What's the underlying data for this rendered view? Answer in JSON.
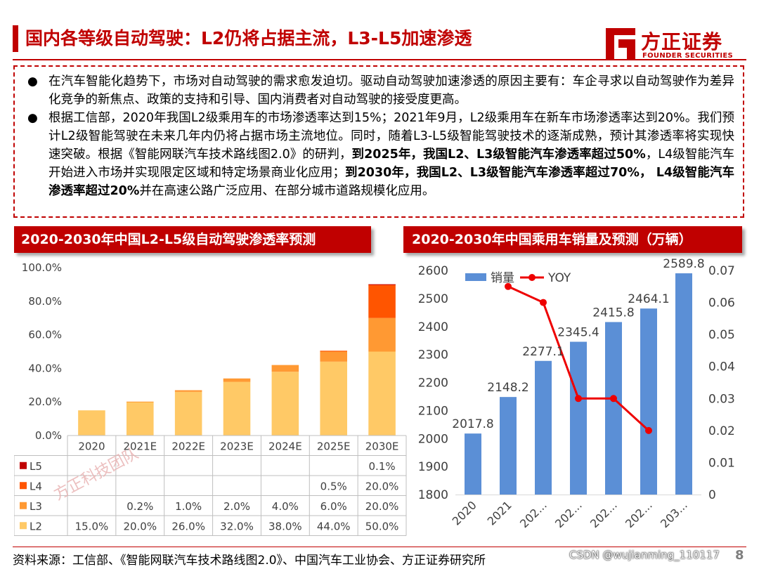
{
  "header": {
    "title": "国内各等级自动驾驶：L2仍将占据主流，L3-L5加速渗透",
    "logo_cn": "方正证券",
    "logo_en": "FOUNDER SECURITIES",
    "brand_color": "#c00000"
  },
  "bullets": [
    {
      "segments": [
        {
          "text": "在汽车智能化趋势下，市场对自动驾驶的需求愈发迫切。驱动自动驾驶加速渗透的原因主要有：车企寻求以自动驾驶作为差异化竞争的新焦点、政策的支持和引导、国内消费者对自动驾驶的接受度更高。",
          "bold": false
        }
      ]
    },
    {
      "segments": [
        {
          "text": "根据工信部，2020年我国L2级乘用车的市场渗透率达到15%；2021年9月，L2级乘用车在新车市场渗透率达到20%。我们预计L2级智能驾驶在未来几年内仍将占据市场主流地位。同时，随着L3-L5级智能驾驶技术的逐渐成熟，预计其渗透率将实现快速突破。根据《智能网联汽车技术路线图2.0》的研判，",
          "bold": false
        },
        {
          "text": "到2025年，我国L2、L3级智能汽车渗透率超过50%",
          "bold": true
        },
        {
          "text": "，L4级智能汽车开始进入市场并实现限定区域和特定场景商业化应用；",
          "bold": false
        },
        {
          "text": "到2030年，我国L2、L3级智能汽车渗透率超过70%， L4级智能汽车渗透率超过20%",
          "bold": true
        },
        {
          "text": "并在高速公路广泛应用、在部分城市道路规模化应用。",
          "bold": false
        }
      ]
    }
  ],
  "left_section": {
    "title": "2020-2030年中国L2-L5级自动驾驶渗透率预测"
  },
  "right_section": {
    "title": "2020-2030年中国乘用车销量及预测（万辆）"
  },
  "chart_data": [
    {
      "type": "bar",
      "stacked": true,
      "categories": [
        "2020",
        "2021E",
        "2022E",
        "2023E",
        "2024E",
        "2025E",
        "2030E"
      ],
      "ylim": [
        0,
        100
      ],
      "yticks": [
        "0.0%",
        "20.0%",
        "40.0%",
        "60.0%",
        "80.0%",
        "100.0%"
      ],
      "series": [
        {
          "name": "L2",
          "values": [
            15.0,
            20.0,
            26.0,
            32.0,
            38.0,
            44.0,
            50.0
          ],
          "labels": [
            "15.0%",
            "20.0%",
            "26.0%",
            "32.0%",
            "38.0%",
            "44.0%",
            "50.0%"
          ],
          "color": "#ffc966"
        },
        {
          "name": "L3",
          "values": [
            0,
            0.2,
            1.0,
            2.0,
            4.0,
            6.0,
            20.0
          ],
          "labels": [
            "",
            "0.2%",
            "1.0%",
            "2.0%",
            "4.0%",
            "6.0%",
            "20.0%"
          ],
          "color": "#ff9933"
        },
        {
          "name": "L4",
          "values": [
            0,
            0,
            0,
            0,
            0,
            0.5,
            20.0
          ],
          "labels": [
            "",
            "",
            "",
            "",
            "",
            "0.5%",
            "20.0%"
          ],
          "color": "#ff5500"
        },
        {
          "name": "L5",
          "values": [
            0,
            0,
            0,
            0,
            0,
            0,
            0.1
          ],
          "labels": [
            "",
            "",
            "",
            "",
            "",
            "",
            "0.1%"
          ],
          "color": "#c00000"
        }
      ],
      "legend": "table-below",
      "watermark": "方正科技团队"
    },
    {
      "type": "bar+line",
      "categories": [
        "2020",
        "2021",
        "202...",
        "202...",
        "202...",
        "202...",
        "203..."
      ],
      "bar_series": {
        "name": "销量",
        "values": [
          2017.8,
          2148.2,
          2277.1,
          2345.4,
          2415.8,
          2464.1,
          2589.8
        ],
        "labels": [
          "2017.8",
          "2148.2",
          "2277.1",
          "2345.4",
          "2415.8",
          "2464.1",
          "2589.8"
        ],
        "color": "#5b8fd6"
      },
      "line_series": {
        "name": "YOY",
        "values": [
          null,
          0.065,
          0.06,
          0.03,
          0.03,
          0.02,
          null
        ],
        "color": "#ee0000"
      },
      "ylim_left": [
        1800,
        2600
      ],
      "yticks_left": [
        "1800",
        "1900",
        "2000",
        "2100",
        "2200",
        "2300",
        "2400",
        "2500",
        "2600"
      ],
      "ylim_right": [
        0,
        0.07
      ],
      "yticks_right": [
        "0",
        "0.01",
        "0.02",
        "0.03",
        "0.04",
        "0.05",
        "0.06",
        "0.07"
      ],
      "legend": "top-left"
    }
  ],
  "footer": {
    "source": "资料来源：工信部、《智能网联汽车技术路线图2.0》、中国汽车工业协会、方正证券研究所",
    "csdn": "CSDN @wujianming_110117",
    "page": "8"
  }
}
